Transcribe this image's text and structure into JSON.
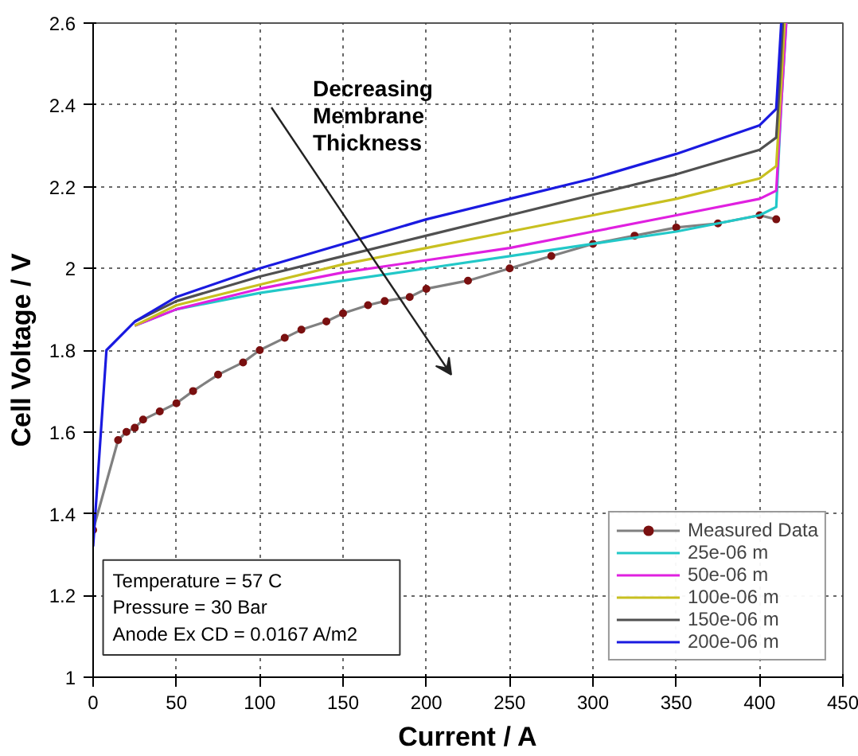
{
  "chart_data": {
    "type": "line",
    "xlabel": "Current / A",
    "ylabel": "Cell Voltage / V",
    "xlim": [
      0,
      450
    ],
    "ylim": [
      1,
      2.6
    ],
    "xticks": [
      0,
      50,
      100,
      150,
      200,
      250,
      300,
      350,
      400,
      450
    ],
    "yticks": [
      1,
      1.2,
      1.4,
      1.6,
      1.8,
      2,
      2.2,
      2.4,
      2.6
    ],
    "grid": true,
    "legend": "bottom right",
    "line_style": "solid",
    "series": [
      {
        "name": "Measured Data",
        "color": "#7a1010",
        "marker": "circle",
        "x": [
          0,
          15,
          20,
          25,
          30,
          40,
          50,
          60,
          75,
          90,
          100,
          115,
          125,
          140,
          150,
          165,
          175,
          190,
          200,
          225,
          250,
          275,
          300,
          325,
          350,
          375,
          400,
          410
        ],
        "values": [
          1.36,
          1.58,
          1.6,
          1.61,
          1.63,
          1.65,
          1.67,
          1.7,
          1.74,
          1.77,
          1.8,
          1.83,
          1.85,
          1.87,
          1.89,
          1.91,
          1.92,
          1.93,
          1.95,
          1.97,
          2.0,
          2.03,
          2.06,
          2.08,
          2.1,
          2.11,
          2.13,
          2.12
        ]
      },
      {
        "name": "25e-06 m",
        "color": "#22c8c8",
        "x": [
          25,
          50,
          100,
          150,
          200,
          250,
          300,
          350,
          400,
          410,
          413,
          416
        ],
        "values": [
          1.86,
          1.9,
          1.94,
          1.97,
          2.0,
          2.03,
          2.06,
          2.09,
          2.13,
          2.15,
          2.4,
          2.6
        ]
      },
      {
        "name": "50e-06 m",
        "color": "#e020e0",
        "x": [
          25,
          50,
          100,
          150,
          200,
          250,
          300,
          350,
          400,
          410,
          413,
          416
        ],
        "values": [
          1.86,
          1.9,
          1.95,
          1.99,
          2.02,
          2.05,
          2.09,
          2.13,
          2.17,
          2.19,
          2.4,
          2.6
        ]
      },
      {
        "name": "100e-06 m",
        "color": "#c8c020",
        "x": [
          25,
          50,
          100,
          150,
          200,
          250,
          300,
          350,
          400,
          410,
          413,
          415
        ],
        "values": [
          1.86,
          1.91,
          1.96,
          2.01,
          2.05,
          2.09,
          2.13,
          2.17,
          2.22,
          2.25,
          2.45,
          2.6
        ]
      },
      {
        "name": "150e-06 m",
        "color": "#505050",
        "x": [
          25,
          50,
          100,
          150,
          200,
          250,
          300,
          350,
          400,
          410,
          412,
          414
        ],
        "values": [
          1.87,
          1.92,
          1.98,
          2.03,
          2.08,
          2.13,
          2.18,
          2.23,
          2.29,
          2.32,
          2.45,
          2.6
        ]
      },
      {
        "name": "200e-06 m",
        "color": "#1a1ae0",
        "x": [
          0,
          8,
          25,
          50,
          100,
          150,
          200,
          250,
          300,
          350,
          400,
          410,
          413
        ],
        "values": [
          1.32,
          1.8,
          1.87,
          1.93,
          2.0,
          2.06,
          2.12,
          2.17,
          2.22,
          2.28,
          2.35,
          2.39,
          2.6
        ]
      }
    ],
    "annotations": [
      "Decreasing Membrane Thickness",
      "Temperature        = 57 C",
      "Pressure             = 30 Bar",
      "Anode Ex CD       = 0.0167 A/m2"
    ]
  }
}
